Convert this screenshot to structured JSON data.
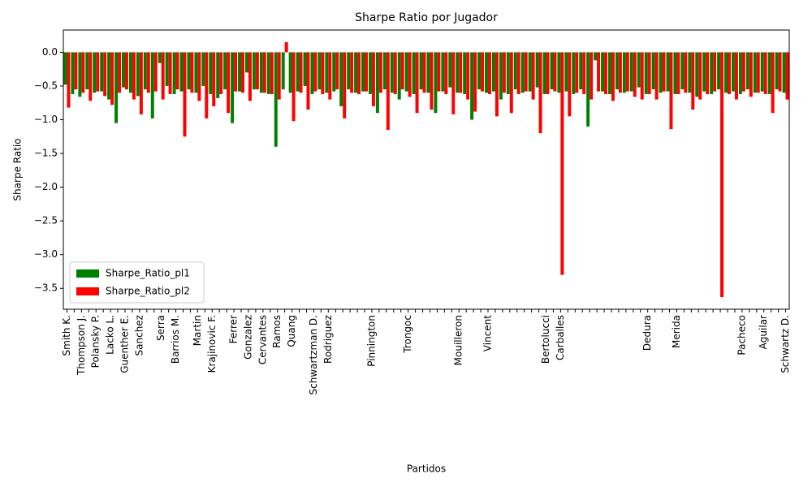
{
  "chart_data": {
    "type": "bar",
    "title": "Sharpe Ratio por Jugador",
    "xlabel": "Partidos",
    "ylabel": "Sharpe Ratio",
    "categories": [
      "Smith K.",
      null,
      "Thompson J.",
      null,
      "Polansky P.",
      null,
      "Lacko L.",
      null,
      "Guenther E.",
      null,
      "Sanchez",
      null,
      null,
      "Serra",
      null,
      "Barrios M.",
      null,
      null,
      "Martin",
      null,
      "Krajinovic F.",
      null,
      null,
      "Ferrer",
      null,
      "Gonzalez",
      null,
      "Cervantes",
      null,
      "Ramos",
      null,
      "Quang",
      null,
      null,
      "Schwartzman D.",
      null,
      "Rodriguez",
      null,
      null,
      null,
      null,
      null,
      "Pinnington",
      null,
      null,
      null,
      null,
      "Trongoc",
      null,
      null,
      null,
      null,
      null,
      null,
      "Mouilleron",
      null,
      null,
      null,
      "Vincent",
      null,
      null,
      null,
      null,
      null,
      null,
      null,
      "Bertolucci",
      null,
      "Carballes",
      null,
      null,
      null,
      null,
      null,
      null,
      null,
      null,
      null,
      null,
      null,
      "Dedura",
      null,
      null,
      null,
      "Merida",
      null,
      null,
      null,
      null,
      null,
      null,
      null,
      null,
      "Pacheco",
      null,
      null,
      "Aguilar",
      null,
      null,
      "Schwartz D."
    ],
    "series": [
      {
        "name": "Sharpe_Ratio_pl1",
        "color": "#008000",
        "values": [
          -0.48,
          -0.62,
          -0.66,
          -0.55,
          -0.6,
          -0.58,
          -0.7,
          -1.05,
          -0.52,
          -0.6,
          -0.65,
          -0.55,
          -0.98,
          -0.16,
          -0.5,
          -0.62,
          -0.58,
          -0.55,
          -0.6,
          -0.5,
          -0.62,
          -0.68,
          -0.55,
          -1.05,
          -0.58,
          -0.3,
          -0.55,
          -0.6,
          -0.62,
          -1.4,
          -0.55,
          -0.6,
          -0.58,
          -0.5,
          -0.62,
          -0.55,
          -0.6,
          -0.58,
          -0.8,
          -0.55,
          -0.6,
          -0.58,
          -0.62,
          -0.9,
          -0.55,
          -0.6,
          -0.7,
          -0.58,
          -0.62,
          -0.55,
          -0.6,
          -0.9,
          -0.58,
          -0.52,
          -0.6,
          -0.62,
          -1.0,
          -0.55,
          -0.6,
          -0.58,
          -0.7,
          -0.62,
          -0.55,
          -0.6,
          -0.58,
          -0.52,
          -0.62,
          -0.55,
          -0.6,
          -0.58,
          -0.62,
          -0.55,
          -1.1,
          -0.12,
          -0.58,
          -0.62,
          -0.55,
          -0.6,
          -0.58,
          -0.52,
          -0.62,
          -0.55,
          -0.6,
          -0.58,
          -0.62,
          -0.55,
          -0.6,
          -0.66,
          -0.58,
          -0.62,
          -0.55,
          -0.6,
          -0.58,
          -0.62,
          -0.55,
          -0.6,
          -0.58,
          -0.62,
          -0.55,
          -0.6
        ]
      },
      {
        "name": "Sharpe_Ratio_pl2",
        "color": "#ff0000",
        "values": [
          -0.82,
          -0.55,
          -0.6,
          -0.72,
          -0.58,
          -0.65,
          -0.78,
          -0.6,
          -0.55,
          -0.7,
          -0.92,
          -0.6,
          -0.58,
          -0.7,
          -0.62,
          -0.55,
          -1.25,
          -0.6,
          -0.72,
          -0.98,
          -0.8,
          -0.62,
          -0.9,
          -0.58,
          -0.6,
          -0.72,
          -0.55,
          -0.6,
          -0.62,
          -0.7,
          0.15,
          -1.02,
          -0.6,
          -0.85,
          -0.58,
          -0.62,
          -0.7,
          -0.55,
          -0.98,
          -0.6,
          -0.62,
          -0.58,
          -0.8,
          -0.6,
          -1.15,
          -0.62,
          -0.55,
          -0.66,
          -0.9,
          -0.6,
          -0.85,
          -0.58,
          -0.62,
          -0.92,
          -0.6,
          -0.7,
          -0.88,
          -0.58,
          -0.62,
          -0.95,
          -0.6,
          -0.9,
          -0.62,
          -0.58,
          -0.7,
          -1.2,
          -0.62,
          -0.58,
          -3.3,
          -0.95,
          -0.6,
          -0.62,
          -0.7,
          -0.58,
          -0.62,
          -0.72,
          -0.6,
          -0.58,
          -0.66,
          -0.7,
          -0.62,
          -0.7,
          -0.58,
          -1.14,
          -0.62,
          -0.6,
          -0.85,
          -0.7,
          -0.62,
          -0.58,
          -3.63,
          -0.62,
          -0.7,
          -0.58,
          -0.66,
          -0.6,
          -0.62,
          -0.9,
          -0.58,
          -0.7
        ]
      }
    ],
    "ylim": [
      -3.81,
      0.33
    ],
    "yticks": [
      {
        "value": -3.5,
        "label": "−3.5"
      },
      {
        "value": -3,
        "label": "−3.0"
      },
      {
        "value": -2.5,
        "label": "−2.5"
      },
      {
        "value": -2,
        "label": "−2.0"
      },
      {
        "value": -1.5,
        "label": "−1.5"
      },
      {
        "value": -1,
        "label": "−1.0"
      },
      {
        "value": -0.5,
        "label": "−0.5"
      },
      {
        "value": 0,
        "label": "0.0"
      }
    ],
    "legend": "lower left"
  }
}
